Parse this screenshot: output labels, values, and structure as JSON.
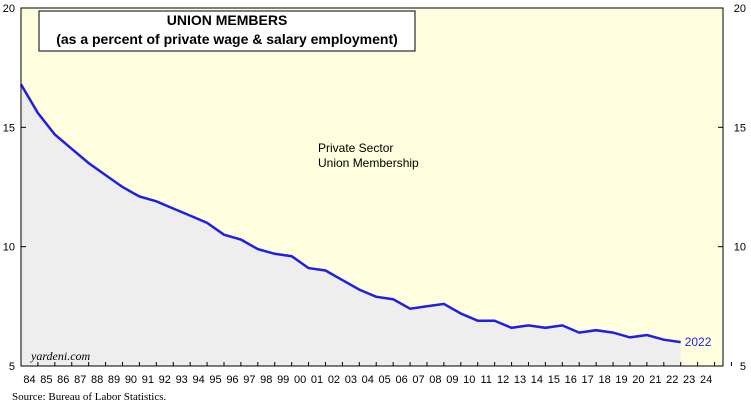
{
  "chart_data": {
    "type": "area",
    "title": "UNION MEMBERS",
    "subtitle": "(as a percent of private wage & salary employment)",
    "annotation": "Private Sector\nUnion Membership",
    "ylim": [
      5,
      20
    ],
    "yticks": [
      5,
      10,
      15,
      20
    ],
    "xticks": [
      "84",
      "85",
      "86",
      "87",
      "88",
      "89",
      "90",
      "91",
      "92",
      "93",
      "94",
      "95",
      "96",
      "97",
      "98",
      "99",
      "00",
      "01",
      "02",
      "03",
      "04",
      "05",
      "06",
      "07",
      "08",
      "09",
      "10",
      "11",
      "12",
      "13",
      "14",
      "15",
      "16",
      "17",
      "18",
      "19",
      "20",
      "21",
      "22",
      "23",
      "24"
    ],
    "x_years": [
      1983,
      1984,
      1985,
      1986,
      1987,
      1988,
      1989,
      1990,
      1991,
      1992,
      1993,
      1994,
      1995,
      1996,
      1997,
      1998,
      1999,
      2000,
      2001,
      2002,
      2003,
      2004,
      2005,
      2006,
      2007,
      2008,
      2009,
      2010,
      2011,
      2012,
      2013,
      2014,
      2015,
      2016,
      2017,
      2018,
      2019,
      2020,
      2021,
      2022
    ],
    "values": [
      16.8,
      15.6,
      14.7,
      14.1,
      13.5,
      13.0,
      12.5,
      12.1,
      11.9,
      11.6,
      11.3,
      11.0,
      10.5,
      10.3,
      9.9,
      9.7,
      9.6,
      9.1,
      9.0,
      8.6,
      8.2,
      7.9,
      7.8,
      7.4,
      7.5,
      7.6,
      7.2,
      6.9,
      6.9,
      6.6,
      6.7,
      6.6,
      6.7,
      6.4,
      6.5,
      6.4,
      6.2,
      6.3,
      6.1,
      6.0
    ],
    "end_label": "2022",
    "grid": false,
    "colors": {
      "line": "#1f1fe6",
      "plot_bg": "#ffffe0",
      "area_fill": "#eeeeee"
    }
  },
  "watermark": "yardeni.com",
  "source": "Source: Bureau of Labor Statistics."
}
